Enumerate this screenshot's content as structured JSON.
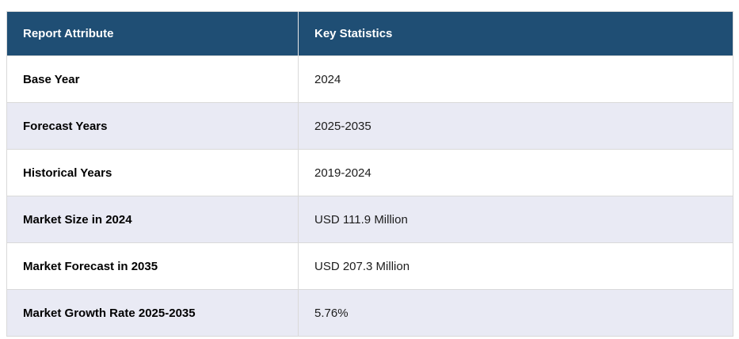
{
  "chart_data": {
    "type": "table",
    "columns": [
      "Report Attribute",
      "Key Statistics"
    ],
    "rows": [
      {
        "attribute": "Base Year",
        "value": "2024"
      },
      {
        "attribute": "Forecast Years",
        "value": "2025-2035"
      },
      {
        "attribute": "Historical Years",
        "value": "2019-2024"
      },
      {
        "attribute": "Market Size in 2024",
        "value": "USD 111.9 Million"
      },
      {
        "attribute": "Market Forecast in 2035",
        "value": "USD 207.3 Million"
      },
      {
        "attribute": "Market Growth Rate 2025-2035",
        "value": "5.76%"
      }
    ],
    "layout": {
      "header_row": true,
      "alternating_rows": true,
      "grid": "light"
    }
  },
  "colors": {
    "header_bg": "#1F4E74",
    "header_text": "#FFFFFF",
    "row_alt_bg": "#E9EAF4",
    "row_bg": "#FFFFFF",
    "border": "#D9D9D9",
    "label_text": "#000000",
    "value_text": "#1C1C1C"
  }
}
